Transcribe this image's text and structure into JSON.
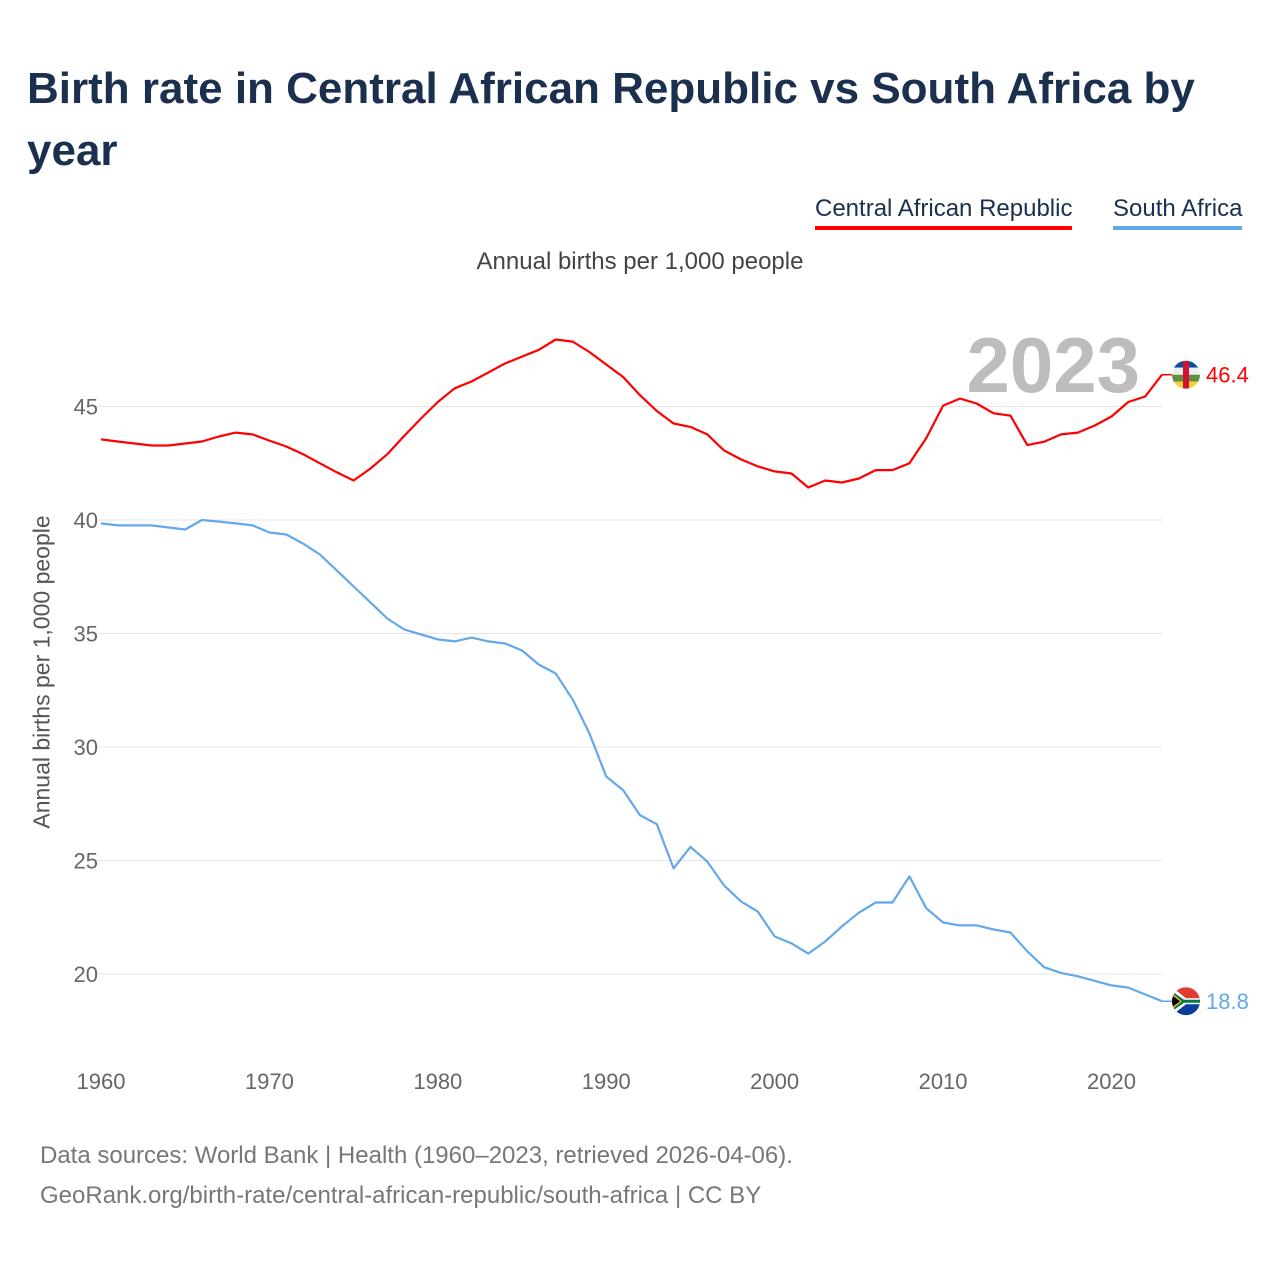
{
  "title": "Birth rate in Central African Republic vs South Africa by year",
  "legend": [
    {
      "label": "Central African Republic",
      "color": "#ff0000"
    },
    {
      "label": "South Africa",
      "color": "#62a8ea"
    }
  ],
  "footer": {
    "line1": "Data sources: World Bank | Health (1960–2023, retrieved 2026-04-06).",
    "line2": "GeoRank.org/birth-rate/central-african-republic/south-africa | CC BY"
  },
  "chart_data": {
    "type": "line",
    "title": "Birth rate in Central African Republic vs South Africa by year",
    "subtitle": "Annual births per 1,000 people",
    "ylabel": "Annual births per 1,000 people",
    "xlabel": "",
    "year_label": "2023",
    "xlim": [
      1960,
      2023
    ],
    "ylim": [
      17,
      49
    ],
    "yticks": [
      20,
      25,
      30,
      35,
      40,
      45
    ],
    "xticks": [
      1960,
      1970,
      1980,
      1990,
      2000,
      2010,
      2020
    ],
    "grid": true,
    "legend_position": "top-right",
    "x": [
      1960,
      1961,
      1962,
      1963,
      1964,
      1965,
      1966,
      1967,
      1968,
      1969,
      1970,
      1971,
      1972,
      1973,
      1974,
      1975,
      1976,
      1977,
      1978,
      1979,
      1980,
      1981,
      1982,
      1983,
      1984,
      1985,
      1986,
      1987,
      1988,
      1989,
      1990,
      1991,
      1992,
      1993,
      1994,
      1995,
      1996,
      1997,
      1998,
      1999,
      2000,
      2001,
      2002,
      2003,
      2004,
      2005,
      2006,
      2007,
      2008,
      2009,
      2010,
      2011,
      2012,
      2013,
      2014,
      2015,
      2016,
      2017,
      2018,
      2019,
      2020,
      2021,
      2022,
      2023
    ],
    "series": [
      {
        "name": "Central African Republic",
        "color": "#ff0000",
        "end_label": "46.4",
        "values": [
          43.55,
          43.46,
          43.37,
          43.28,
          43.28,
          43.37,
          43.46,
          43.68,
          43.85,
          43.77,
          43.5,
          43.24,
          42.9,
          42.5,
          42.1,
          41.74,
          42.27,
          42.9,
          43.7,
          44.47,
          45.2,
          45.8,
          46.1,
          46.5,
          46.9,
          47.2,
          47.5,
          47.95,
          47.86,
          47.4,
          46.85,
          46.3,
          45.5,
          44.8,
          44.25,
          44.1,
          43.77,
          43.06,
          42.67,
          42.36,
          42.14,
          42.05,
          41.43,
          41.74,
          41.65,
          41.83,
          42.2,
          42.2,
          42.5,
          43.6,
          45.04,
          45.35,
          45.13,
          44.7,
          44.6,
          43.3,
          43.45,
          43.77,
          43.85,
          44.16,
          44.56,
          45.2,
          45.44,
          46.4
        ]
      },
      {
        "name": "South Africa",
        "color": "#62a8ea",
        "end_label": "18.8",
        "values": [
          39.85,
          39.76,
          39.76,
          39.76,
          39.67,
          39.58,
          40.0,
          39.93,
          39.85,
          39.76,
          39.45,
          39.36,
          38.96,
          38.48,
          37.78,
          37.07,
          36.37,
          35.66,
          35.18,
          34.96,
          34.74,
          34.65,
          34.82,
          34.65,
          34.56,
          34.25,
          33.63,
          33.24,
          32.1,
          30.6,
          28.7,
          28.1,
          27.0,
          26.6,
          24.65,
          25.6,
          24.95,
          23.9,
          23.2,
          22.75,
          21.65,
          21.35,
          20.9,
          21.43,
          22.1,
          22.7,
          23.15,
          23.15,
          24.3,
          22.9,
          22.27,
          22.14,
          22.14,
          21.96,
          21.83,
          21.0,
          20.3,
          20.05,
          19.9,
          19.7,
          19.5,
          19.4,
          19.1,
          18.8
        ]
      }
    ]
  }
}
